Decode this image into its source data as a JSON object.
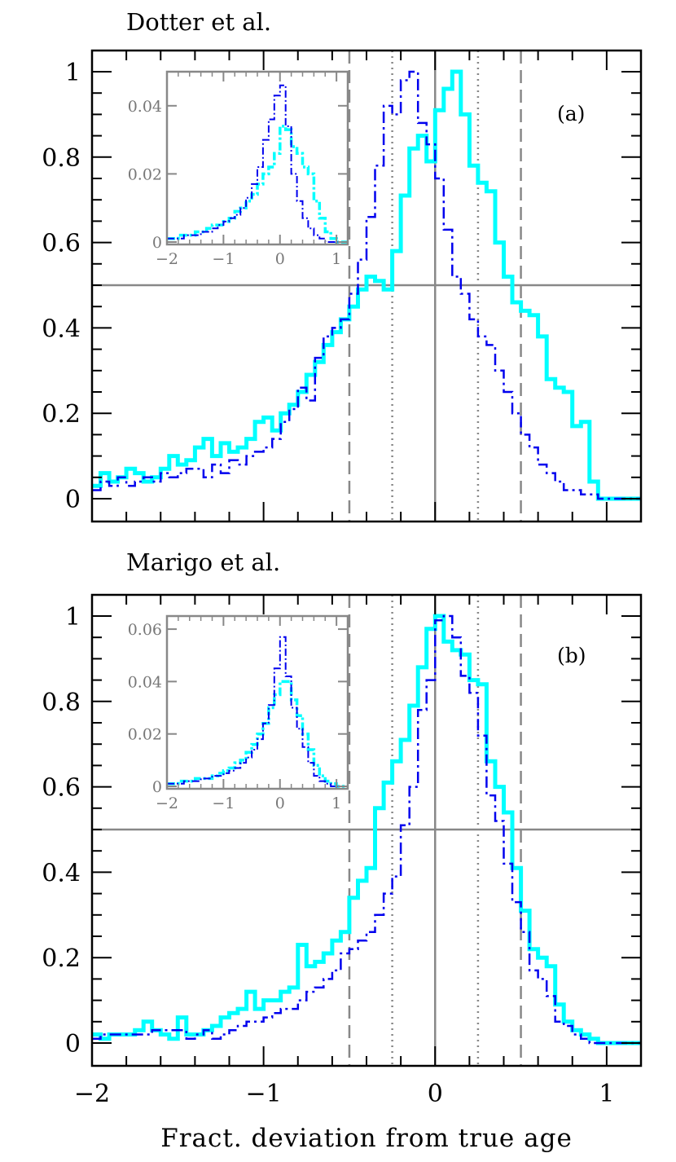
{
  "chart_data": [
    {
      "panel": "(a)",
      "title": "Dotter et al.",
      "type": "line",
      "xlabel": "Fract. deviation from true age",
      "xlim": [
        -2,
        1.2
      ],
      "ylim": [
        0,
        1.05
      ],
      "xticks": [
        -2,
        -1,
        0,
        1
      ],
      "yticks": [
        0,
        0.2,
        0.4,
        0.6,
        0.8,
        1
      ],
      "ytick_labels": [
        "0",
        "0.2",
        "0.4",
        "0.6",
        "0.8",
        "1"
      ],
      "reference_lines": {
        "horizontal": 0.5,
        "vertical_solid": 0,
        "vertical_dotted": [
          -0.25,
          0.25
        ],
        "vertical_dashed": [
          -0.5,
          0.5
        ]
      },
      "series": [
        {
          "color": "#00FFFF",
          "style": "solid-thick",
          "x": [
            -2.0,
            -1.95,
            -1.9,
            -1.85,
            -1.8,
            -1.75,
            -1.7,
            -1.65,
            -1.6,
            -1.55,
            -1.5,
            -1.45,
            -1.4,
            -1.35,
            -1.3,
            -1.25,
            -1.2,
            -1.15,
            -1.1,
            -1.05,
            -1.0,
            -0.95,
            -0.9,
            -0.85,
            -0.8,
            -0.75,
            -0.7,
            -0.65,
            -0.6,
            -0.55,
            -0.5,
            -0.45,
            -0.4,
            -0.35,
            -0.3,
            -0.25,
            -0.2,
            -0.15,
            -0.1,
            -0.05,
            0.0,
            0.05,
            0.1,
            0.15,
            0.2,
            0.25,
            0.3,
            0.35,
            0.4,
            0.45,
            0.5,
            0.55,
            0.6,
            0.65,
            0.7,
            0.75,
            0.8,
            0.85,
            0.9,
            0.95,
            1.0,
            1.05,
            1.1,
            1.15,
            1.2
          ],
          "y": [
            0.03,
            0.06,
            0.04,
            0.05,
            0.07,
            0.06,
            0.04,
            0.05,
            0.07,
            0.1,
            0.08,
            0.09,
            0.12,
            0.14,
            0.1,
            0.13,
            0.11,
            0.12,
            0.14,
            0.18,
            0.19,
            0.16,
            0.2,
            0.22,
            0.25,
            0.29,
            0.32,
            0.36,
            0.39,
            0.42,
            0.45,
            0.49,
            0.52,
            0.51,
            0.49,
            0.58,
            0.71,
            0.82,
            0.85,
            0.79,
            0.91,
            0.96,
            1.0,
            0.9,
            0.78,
            0.74,
            0.72,
            0.6,
            0.52,
            0.46,
            0.44,
            0.43,
            0.38,
            0.28,
            0.26,
            0.25,
            0.17,
            0.18,
            0.04,
            0.0,
            0.0,
            0.0,
            0.0,
            0.0,
            0.0
          ]
        },
        {
          "color": "#0000EE",
          "style": "dash-dot",
          "x": [
            -2.0,
            -1.95,
            -1.9,
            -1.85,
            -1.8,
            -1.75,
            -1.7,
            -1.65,
            -1.6,
            -1.55,
            -1.5,
            -1.45,
            -1.4,
            -1.35,
            -1.3,
            -1.25,
            -1.2,
            -1.15,
            -1.1,
            -1.05,
            -1.0,
            -0.95,
            -0.9,
            -0.85,
            -0.8,
            -0.75,
            -0.7,
            -0.65,
            -0.6,
            -0.55,
            -0.5,
            -0.45,
            -0.4,
            -0.35,
            -0.3,
            -0.25,
            -0.2,
            -0.15,
            -0.1,
            -0.05,
            0.0,
            0.05,
            0.1,
            0.15,
            0.2,
            0.25,
            0.3,
            0.35,
            0.4,
            0.45,
            0.5,
            0.55,
            0.6,
            0.65,
            0.7,
            0.75,
            0.8,
            0.85,
            0.9,
            0.95,
            1.0,
            1.05,
            1.1,
            1.15,
            1.2
          ],
          "y": [
            0.02,
            0.04,
            0.03,
            0.05,
            0.03,
            0.04,
            0.05,
            0.04,
            0.06,
            0.05,
            0.06,
            0.07,
            0.07,
            0.05,
            0.08,
            0.06,
            0.09,
            0.08,
            0.1,
            0.11,
            0.12,
            0.14,
            0.18,
            0.21,
            0.26,
            0.23,
            0.33,
            0.38,
            0.4,
            0.42,
            0.48,
            0.56,
            0.66,
            0.78,
            0.92,
            0.9,
            0.98,
            1.0,
            0.88,
            0.83,
            0.75,
            0.63,
            0.52,
            0.48,
            0.42,
            0.38,
            0.36,
            0.3,
            0.25,
            0.2,
            0.15,
            0.12,
            0.08,
            0.06,
            0.04,
            0.02,
            0.02,
            0.01,
            0.01,
            0.0,
            0.0,
            0.0,
            0.0,
            0.0,
            0.0
          ]
        }
      ],
      "inset": {
        "xlim": [
          -2,
          1.2
        ],
        "ylim": [
          0,
          0.05
        ],
        "xticks": [
          -2,
          -1,
          0,
          1
        ],
        "yticks": [
          0,
          0.02,
          0.04
        ],
        "ytick_labels": [
          "0",
          "0.02",
          "0.04"
        ],
        "series": [
          {
            "color": "#00FFFF",
            "x": [
              -2.0,
              -1.9,
              -1.8,
              -1.7,
              -1.6,
              -1.5,
              -1.4,
              -1.3,
              -1.2,
              -1.1,
              -1.0,
              -0.9,
              -0.8,
              -0.7,
              -0.6,
              -0.5,
              -0.4,
              -0.3,
              -0.2,
              -0.1,
              0.0,
              0.1,
              0.2,
              0.3,
              0.4,
              0.5,
              0.6,
              0.7,
              0.8,
              0.9,
              1.0,
              1.1,
              1.2
            ],
            "y": [
              0.001,
              0.001,
              0.002,
              0.002,
              0.002,
              0.003,
              0.003,
              0.004,
              0.005,
              0.005,
              0.006,
              0.007,
              0.009,
              0.01,
              0.012,
              0.014,
              0.017,
              0.02,
              0.022,
              0.026,
              0.034,
              0.033,
              0.028,
              0.026,
              0.022,
              0.02,
              0.012,
              0.007,
              0.003,
              0.001,
              0.0,
              0.0,
              0.0
            ]
          },
          {
            "color": "#0000EE",
            "x": [
              -2.0,
              -1.9,
              -1.8,
              -1.7,
              -1.6,
              -1.5,
              -1.4,
              -1.3,
              -1.2,
              -1.1,
              -1.0,
              -0.9,
              -0.8,
              -0.7,
              -0.6,
              -0.5,
              -0.4,
              -0.3,
              -0.2,
              -0.1,
              0.0,
              0.1,
              0.2,
              0.3,
              0.4,
              0.5,
              0.6,
              0.7,
              0.8,
              0.9,
              1.0,
              1.1,
              1.2
            ],
            "y": [
              0.001,
              0.001,
              0.001,
              0.002,
              0.002,
              0.002,
              0.003,
              0.003,
              0.004,
              0.005,
              0.006,
              0.007,
              0.008,
              0.01,
              0.013,
              0.017,
              0.022,
              0.03,
              0.036,
              0.043,
              0.046,
              0.034,
              0.02,
              0.012,
              0.007,
              0.004,
              0.002,
              0.001,
              0.0,
              0.0,
              0.0,
              0.0,
              0.0
            ]
          }
        ]
      }
    },
    {
      "panel": "(b)",
      "title": "Marigo et al.",
      "type": "line",
      "xlabel": "Fract. deviation from true age",
      "xlim": [
        -2,
        1.2
      ],
      "ylim": [
        0,
        1.05
      ],
      "xticks": [
        -2,
        -1,
        0,
        1
      ],
      "xtick_labels": [
        "−2",
        "−1",
        "0",
        "1"
      ],
      "yticks": [
        0,
        0.2,
        0.4,
        0.6,
        0.8,
        1
      ],
      "ytick_labels": [
        "0",
        "0.2",
        "0.4",
        "0.6",
        "0.8",
        "1"
      ],
      "reference_lines": {
        "horizontal": 0.5,
        "vertical_solid": 0,
        "vertical_dotted": [
          -0.25,
          0.25
        ],
        "vertical_dashed": [
          -0.5,
          0.5
        ]
      },
      "series": [
        {
          "color": "#00FFFF",
          "style": "solid-thick",
          "x": [
            -2.0,
            -1.95,
            -1.9,
            -1.85,
            -1.8,
            -1.75,
            -1.7,
            -1.65,
            -1.6,
            -1.55,
            -1.5,
            -1.45,
            -1.4,
            -1.35,
            -1.3,
            -1.25,
            -1.2,
            -1.15,
            -1.1,
            -1.05,
            -1.0,
            -0.95,
            -0.9,
            -0.85,
            -0.8,
            -0.75,
            -0.7,
            -0.65,
            -0.6,
            -0.55,
            -0.5,
            -0.45,
            -0.4,
            -0.35,
            -0.3,
            -0.25,
            -0.2,
            -0.15,
            -0.1,
            -0.05,
            0.0,
            0.05,
            0.1,
            0.15,
            0.2,
            0.25,
            0.3,
            0.35,
            0.4,
            0.45,
            0.5,
            0.55,
            0.6,
            0.65,
            0.7,
            0.75,
            0.8,
            0.85,
            0.9,
            0.95,
            1.0,
            1.05,
            1.1,
            1.15,
            1.2
          ],
          "y": [
            0.02,
            0.01,
            0.02,
            0.02,
            0.02,
            0.03,
            0.05,
            0.03,
            0.02,
            0.01,
            0.06,
            0.02,
            0.02,
            0.03,
            0.04,
            0.06,
            0.07,
            0.08,
            0.12,
            0.08,
            0.1,
            0.1,
            0.12,
            0.13,
            0.23,
            0.18,
            0.19,
            0.21,
            0.24,
            0.26,
            0.34,
            0.38,
            0.41,
            0.55,
            0.61,
            0.66,
            0.71,
            0.79,
            0.88,
            0.97,
            1.0,
            0.94,
            0.92,
            0.91,
            0.85,
            0.84,
            0.66,
            0.6,
            0.54,
            0.41,
            0.31,
            0.22,
            0.2,
            0.18,
            0.09,
            0.05,
            0.03,
            0.02,
            0.01,
            0.0,
            0.0,
            0.0,
            0.0,
            0.0,
            0.0
          ]
        },
        {
          "color": "#0000EE",
          "style": "dash-dot",
          "x": [
            -2.0,
            -1.95,
            -1.9,
            -1.85,
            -1.8,
            -1.75,
            -1.7,
            -1.65,
            -1.6,
            -1.55,
            -1.5,
            -1.45,
            -1.4,
            -1.35,
            -1.3,
            -1.25,
            -1.2,
            -1.15,
            -1.1,
            -1.05,
            -1.0,
            -0.95,
            -0.9,
            -0.85,
            -0.8,
            -0.75,
            -0.7,
            -0.65,
            -0.6,
            -0.55,
            -0.5,
            -0.45,
            -0.4,
            -0.35,
            -0.3,
            -0.25,
            -0.2,
            -0.15,
            -0.1,
            -0.05,
            0.0,
            0.05,
            0.1,
            0.15,
            0.2,
            0.25,
            0.3,
            0.35,
            0.4,
            0.45,
            0.5,
            0.55,
            0.6,
            0.65,
            0.7,
            0.75,
            0.8,
            0.85,
            0.9,
            0.95,
            1.0,
            1.05,
            1.1,
            1.15,
            1.2
          ],
          "y": [
            0.01,
            0.02,
            0.02,
            0.02,
            0.02,
            0.02,
            0.02,
            0.03,
            0.03,
            0.03,
            0.03,
            0.01,
            0.02,
            0.03,
            0.01,
            0.02,
            0.03,
            0.04,
            0.05,
            0.05,
            0.06,
            0.07,
            0.08,
            0.08,
            0.1,
            0.12,
            0.13,
            0.15,
            0.17,
            0.21,
            0.22,
            0.24,
            0.26,
            0.3,
            0.35,
            0.39,
            0.51,
            0.6,
            0.78,
            0.85,
            0.99,
            1.0,
            0.95,
            0.86,
            0.82,
            0.72,
            0.58,
            0.52,
            0.42,
            0.33,
            0.26,
            0.17,
            0.15,
            0.11,
            0.05,
            0.04,
            0.02,
            0.01,
            0.0,
            0.0,
            0.0,
            0.0,
            0.0,
            0.0,
            0.0
          ]
        }
      ],
      "inset": {
        "xlim": [
          -2,
          1.2
        ],
        "ylim": [
          0,
          0.065
        ],
        "xticks": [
          -2,
          -1,
          0,
          1
        ],
        "yticks": [
          0,
          0.02,
          0.04,
          0.06
        ],
        "ytick_labels": [
          "0",
          "0.02",
          "0.04",
          "0.06"
        ],
        "series": [
          {
            "color": "#00FFFF",
            "x": [
              -2.0,
              -1.9,
              -1.8,
              -1.7,
              -1.6,
              -1.5,
              -1.4,
              -1.3,
              -1.2,
              -1.1,
              -1.0,
              -0.9,
              -0.8,
              -0.7,
              -0.6,
              -0.5,
              -0.4,
              -0.3,
              -0.2,
              -0.1,
              0.0,
              0.1,
              0.2,
              0.3,
              0.4,
              0.5,
              0.6,
              0.7,
              0.8,
              0.9,
              1.0,
              1.1,
              1.2
            ],
            "y": [
              0.001,
              0.001,
              0.002,
              0.002,
              0.002,
              0.003,
              0.003,
              0.003,
              0.004,
              0.005,
              0.006,
              0.007,
              0.009,
              0.01,
              0.013,
              0.016,
              0.02,
              0.024,
              0.03,
              0.035,
              0.04,
              0.04,
              0.033,
              0.027,
              0.02,
              0.014,
              0.008,
              0.004,
              0.002,
              0.001,
              0.0,
              0.0,
              0.0
            ]
          },
          {
            "color": "#0000EE",
            "x": [
              -2.0,
              -1.9,
              -1.8,
              -1.7,
              -1.6,
              -1.5,
              -1.4,
              -1.3,
              -1.2,
              -1.1,
              -1.0,
              -0.9,
              -0.8,
              -0.7,
              -0.6,
              -0.5,
              -0.4,
              -0.3,
              -0.2,
              -0.1,
              0.0,
              0.1,
              0.2,
              0.3,
              0.4,
              0.5,
              0.6,
              0.7,
              0.8,
              0.9,
              1.0,
              1.1,
              1.2
            ],
            "y": [
              0.001,
              0.001,
              0.001,
              0.002,
              0.002,
              0.002,
              0.003,
              0.003,
              0.004,
              0.004,
              0.005,
              0.006,
              0.007,
              0.009,
              0.011,
              0.014,
              0.018,
              0.024,
              0.031,
              0.045,
              0.057,
              0.042,
              0.03,
              0.022,
              0.015,
              0.009,
              0.004,
              0.002,
              0.001,
              0.0,
              0.0,
              0.0,
              0.0
            ]
          }
        ]
      }
    }
  ]
}
